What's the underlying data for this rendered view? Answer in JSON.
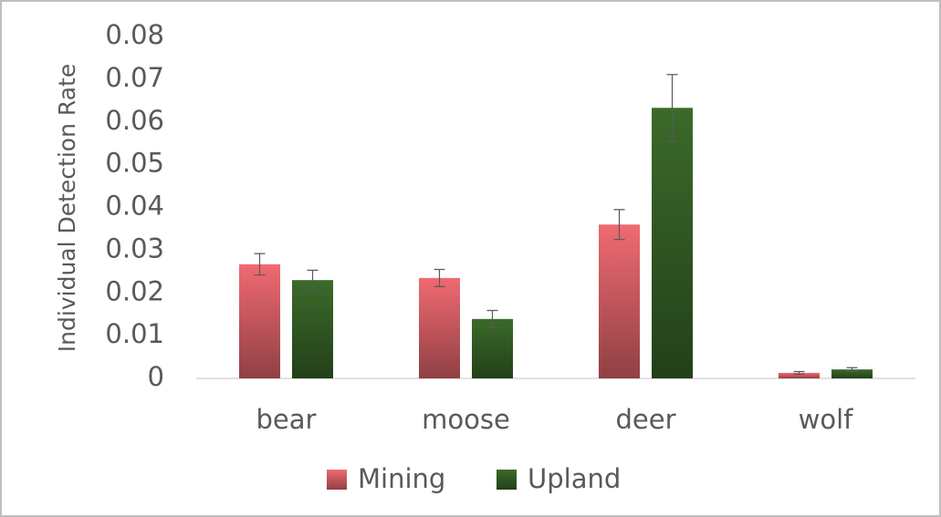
{
  "chart_data": {
    "type": "bar",
    "y_label": "Individual Detection Rate",
    "categories": [
      "bear",
      "moose",
      "deer",
      "wolf"
    ],
    "series": [
      {
        "name": "Mining",
        "color": "#f06a72",
        "values": [
          0.0267,
          0.0235,
          0.036,
          0.0013
        ],
        "errors": [
          0.0025,
          0.002,
          0.0035,
          0.0003
        ]
      },
      {
        "name": "Upland",
        "color": "#3b6a2a",
        "values": [
          0.023,
          0.0139,
          0.0633,
          0.0021
        ],
        "errors": [
          0.0023,
          0.002,
          0.0078,
          0.0004
        ]
      }
    ],
    "ylim": [
      0,
      0.08
    ],
    "yticks": [
      0,
      0.01,
      0.02,
      0.03,
      0.04,
      0.05,
      0.06,
      0.07,
      0.08
    ],
    "grid": false,
    "legend": "bottom"
  }
}
